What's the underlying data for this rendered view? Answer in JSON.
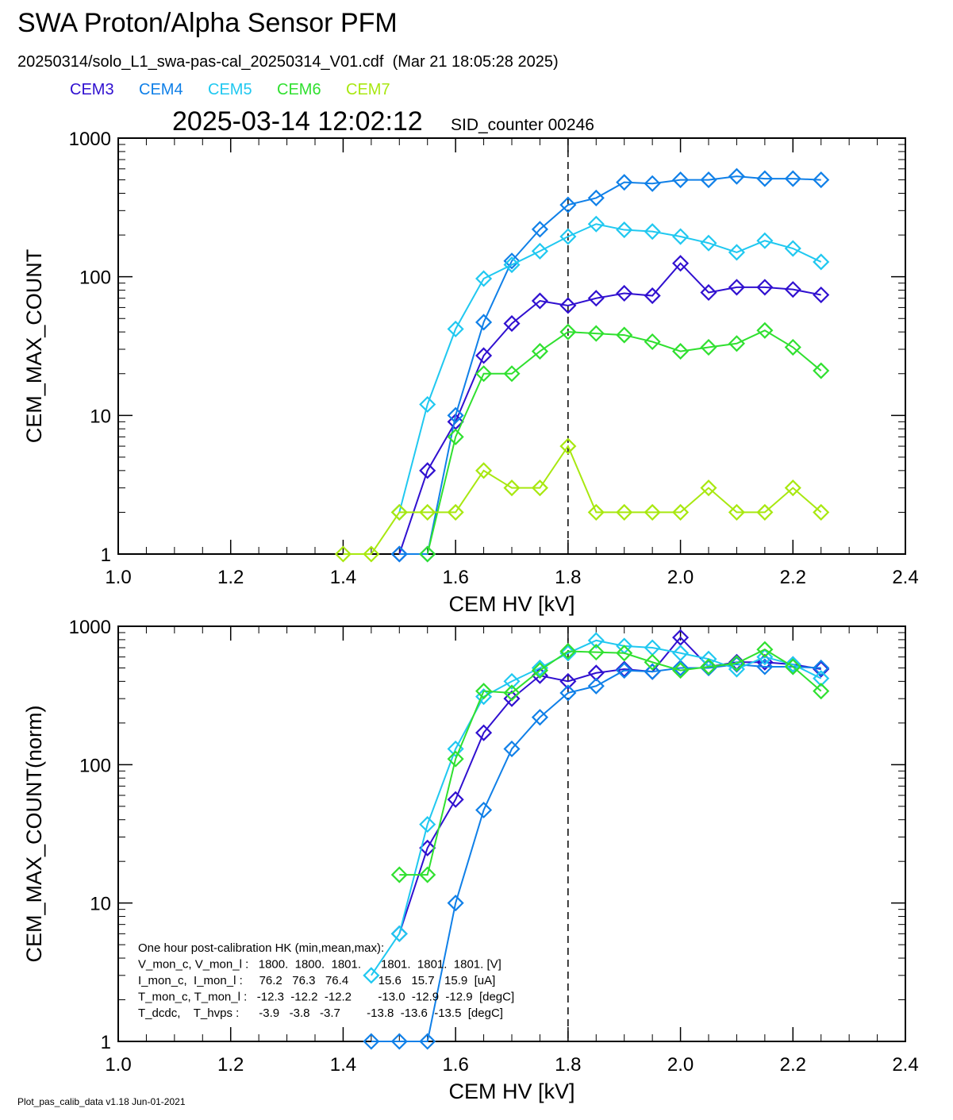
{
  "title": "SWA Proton/Alpha Sensor PFM",
  "subtitle": "20250314/solo_L1_swa-pas-cal_20250314_V01.cdf  (Mar 21 18:05:28 2025)",
  "timestamp": "2025-03-14 12:02:12",
  "counter_label": "SID_counter 00246",
  "footer": "Plot_pas_calib_data v1.18 Jun-01-2021",
  "chart_data": [
    {
      "type": "line",
      "x_label": "CEM HV [kV]",
      "y_label": "CEM_MAX_COUNT",
      "log_y": true,
      "vline": 1.8,
      "legend": true,
      "x": [
        1.4,
        1.45,
        1.5,
        1.55,
        1.6,
        1.65,
        1.7,
        1.75,
        1.8,
        1.85,
        1.9,
        1.95,
        2.0,
        2.05,
        2.1,
        2.15,
        2.2,
        2.25
      ],
      "xlim": [
        1.0,
        2.4
      ],
      "xticks": [
        {
          "value": 1.0,
          "label": "1.0"
        },
        1.2,
        1.4,
        1.6,
        1.8,
        {
          "value": 2.0,
          "label": "2.0"
        },
        2.2,
        2.4
      ],
      "ylim": [
        1,
        1000
      ],
      "yticks": [
        1,
        10,
        100,
        1000
      ],
      "series": [
        {
          "name": "CEM3",
          "color": "#3010d0",
          "values": [
            null,
            null,
            1,
            4,
            9,
            27,
            46,
            67,
            62,
            70,
            76,
            73,
            125,
            77,
            84,
            84,
            81,
            74
          ]
        },
        {
          "name": "CEM4",
          "color": "#1080e8",
          "values": [
            null,
            null,
            1,
            1,
            10,
            47,
            130,
            220,
            330,
            370,
            480,
            470,
            500,
            500,
            530,
            510,
            510,
            500
          ]
        },
        {
          "name": "CEM5",
          "color": "#20c8f0",
          "values": [
            null,
            null,
            2,
            12,
            42,
            97,
            122,
            153,
            195,
            240,
            218,
            212,
            195,
            175,
            150,
            182,
            160,
            128
          ]
        },
        {
          "name": "CEM6",
          "color": "#30e030",
          "values": [
            null,
            null,
            null,
            1,
            7,
            20,
            20,
            29,
            40,
            39,
            38,
            34,
            29,
            31,
            33,
            41,
            31,
            21
          ]
        },
        {
          "name": "CEM7",
          "color": "#a8e810",
          "values": [
            1,
            1,
            2,
            2,
            2,
            4,
            3,
            3,
            6,
            2,
            2,
            2,
            2,
            3,
            2,
            2,
            3,
            2
          ]
        }
      ]
    },
    {
      "type": "line",
      "x_label": "CEM HV [kV]",
      "y_label": "CEM_MAX_COUNT(norm)",
      "log_y": true,
      "vline": 1.8,
      "legend": false,
      "x": [
        1.4,
        1.45,
        1.5,
        1.55,
        1.6,
        1.65,
        1.7,
        1.75,
        1.8,
        1.85,
        1.9,
        1.95,
        2.0,
        2.05,
        2.1,
        2.15,
        2.2,
        2.25
      ],
      "xlim": [
        1.0,
        2.4
      ],
      "xticks": [
        {
          "value": 1.0,
          "label": "1.0"
        },
        1.2,
        1.4,
        1.6,
        1.8,
        {
          "value": 2.0,
          "label": "2.0"
        },
        2.2,
        2.4
      ],
      "ylim": [
        1,
        1000
      ],
      "yticks": [
        1,
        10,
        100,
        1000
      ],
      "annotations": [
        "One hour post-calibration HK (min,mean,max):",
        "V_mon_c, V_mon_l :   1800.  1800.  1801.      1801.  1801.  1801. [V]",
        "I_mon_c,  I_mon_l :     76.2   76.3   76.4         15.6   15.7   15.9  [uA]",
        "T_mon_c, T_mon_l :   -12.3  -12.2  -12.2        -13.0  -12.9  -12.9  [degC]",
        "T_dcdc,    T_hvps :      -3.9   -3.8   -3.7        -13.8  -13.6  -13.5  [degC]"
      ],
      "series": [
        {
          "color": "#3010d0",
          "values": [
            null,
            null,
            6,
            25,
            56,
            170,
            300,
            440,
            400,
            460,
            490,
            470,
            830,
            510,
            550,
            550,
            530,
            490
          ]
        },
        {
          "color": "#1080e8",
          "values": [
            null,
            1,
            1,
            1,
            10,
            47,
            130,
            220,
            330,
            370,
            480,
            470,
            500,
            500,
            530,
            510,
            510,
            500
          ]
        },
        {
          "color": "#20c8f0",
          "values": [
            null,
            3,
            6,
            37,
            130,
            310,
            400,
            500,
            640,
            790,
            720,
            700,
            640,
            580,
            490,
            600,
            530,
            420
          ]
        },
        {
          "color": "#30e030",
          "values": [
            null,
            null,
            16,
            16,
            110,
            340,
            330,
            480,
            660,
            650,
            640,
            550,
            480,
            510,
            540,
            680,
            510,
            340
          ]
        }
      ]
    }
  ]
}
